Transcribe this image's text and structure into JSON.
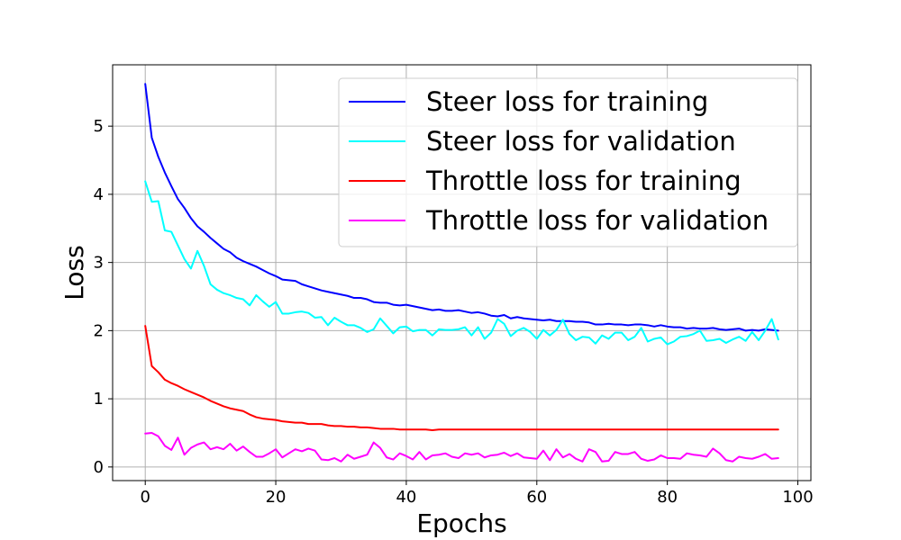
{
  "chart_data": {
    "type": "line",
    "title": "",
    "xlabel": "Epochs",
    "ylabel": "Loss",
    "xlim": [
      -5,
      102
    ],
    "ylim": [
      -0.2,
      5.9
    ],
    "xticks": [
      0,
      20,
      40,
      60,
      80,
      100
    ],
    "yticks": [
      0,
      1,
      2,
      3,
      4,
      5
    ],
    "grid": true,
    "legend_position": "upper-right",
    "x": [
      0,
      1,
      2,
      3,
      4,
      5,
      6,
      7,
      8,
      9,
      10,
      11,
      12,
      13,
      14,
      15,
      16,
      17,
      18,
      19,
      20,
      21,
      22,
      23,
      24,
      25,
      26,
      27,
      28,
      29,
      30,
      31,
      32,
      33,
      34,
      35,
      36,
      37,
      38,
      39,
      40,
      41,
      42,
      43,
      44,
      45,
      46,
      47,
      48,
      49,
      50,
      51,
      52,
      53,
      54,
      55,
      56,
      57,
      58,
      59,
      60,
      61,
      62,
      63,
      64,
      65,
      66,
      67,
      68,
      69,
      70,
      71,
      72,
      73,
      74,
      75,
      76,
      77,
      78,
      79,
      80,
      81,
      82,
      83,
      84,
      85,
      86,
      87,
      88,
      89,
      90,
      91,
      92,
      93,
      94,
      95,
      96,
      97
    ],
    "series": [
      {
        "name": "Steer loss for training",
        "color": "#0000ff",
        "values": [
          5.62,
          4.83,
          4.55,
          4.32,
          4.12,
          3.93,
          3.8,
          3.65,
          3.53,
          3.45,
          3.36,
          3.28,
          3.2,
          3.15,
          3.07,
          3.02,
          2.98,
          2.94,
          2.89,
          2.84,
          2.8,
          2.75,
          2.74,
          2.73,
          2.68,
          2.65,
          2.62,
          2.59,
          2.57,
          2.55,
          2.53,
          2.51,
          2.48,
          2.48,
          2.46,
          2.42,
          2.41,
          2.41,
          2.38,
          2.37,
          2.38,
          2.36,
          2.34,
          2.32,
          2.3,
          2.31,
          2.29,
          2.29,
          2.3,
          2.28,
          2.26,
          2.27,
          2.25,
          2.22,
          2.21,
          2.23,
          2.18,
          2.2,
          2.18,
          2.17,
          2.16,
          2.15,
          2.16,
          2.14,
          2.14,
          2.14,
          2.13,
          2.13,
          2.12,
          2.09,
          2.09,
          2.1,
          2.09,
          2.09,
          2.08,
          2.09,
          2.09,
          2.08,
          2.06,
          2.08,
          2.06,
          2.05,
          2.05,
          2.03,
          2.04,
          2.03,
          2.03,
          2.04,
          2.02,
          2.01,
          2.02,
          2.03,
          2.0,
          2.01,
          2.0,
          2.02,
          2.01,
          2.0
        ]
      },
      {
        "name": "Steer loss for validation",
        "color": "#00ffff",
        "values": [
          4.19,
          3.89,
          3.9,
          3.47,
          3.45,
          3.25,
          3.05,
          2.91,
          3.17,
          2.95,
          2.68,
          2.6,
          2.55,
          2.52,
          2.48,
          2.46,
          2.37,
          2.52,
          2.43,
          2.35,
          2.42,
          2.25,
          2.25,
          2.27,
          2.28,
          2.26,
          2.19,
          2.2,
          2.08,
          2.19,
          2.13,
          2.08,
          2.08,
          2.04,
          1.98,
          2.02,
          2.18,
          2.07,
          1.96,
          2.05,
          2.06,
          1.99,
          2.01,
          2.01,
          1.93,
          2.02,
          2.01,
          2.01,
          2.02,
          2.05,
          1.93,
          2.05,
          1.88,
          1.97,
          2.17,
          2.1,
          1.92,
          2.0,
          2.04,
          1.98,
          1.88,
          2.01,
          1.93,
          2.01,
          2.16,
          1.95,
          1.86,
          1.91,
          1.9,
          1.81,
          1.93,
          1.88,
          1.97,
          1.97,
          1.86,
          1.91,
          2.04,
          1.84,
          1.88,
          1.9,
          1.8,
          1.84,
          1.91,
          1.92,
          1.95,
          2.0,
          1.85,
          1.86,
          1.88,
          1.82,
          1.87,
          1.91,
          1.85,
          1.98,
          1.86,
          2.0,
          2.17,
          1.87
        ]
      },
      {
        "name": "Throttle loss for training",
        "color": "#ff0000",
        "values": [
          2.07,
          1.48,
          1.39,
          1.28,
          1.23,
          1.19,
          1.14,
          1.1,
          1.06,
          1.02,
          0.97,
          0.93,
          0.89,
          0.86,
          0.84,
          0.82,
          0.77,
          0.73,
          0.71,
          0.7,
          0.69,
          0.67,
          0.66,
          0.65,
          0.65,
          0.63,
          0.63,
          0.63,
          0.61,
          0.6,
          0.6,
          0.59,
          0.59,
          0.58,
          0.58,
          0.57,
          0.56,
          0.56,
          0.56,
          0.55,
          0.55,
          0.55,
          0.55,
          0.55,
          0.54,
          0.55,
          0.55,
          0.55,
          0.55,
          0.55,
          0.55,
          0.55,
          0.55,
          0.55,
          0.55,
          0.55,
          0.55,
          0.55,
          0.55,
          0.55,
          0.55,
          0.55,
          0.55,
          0.55,
          0.55,
          0.55,
          0.55,
          0.55,
          0.55,
          0.55,
          0.55,
          0.55,
          0.55,
          0.55,
          0.55,
          0.55,
          0.55,
          0.55,
          0.55,
          0.55,
          0.55,
          0.55,
          0.55,
          0.55,
          0.55,
          0.55,
          0.55,
          0.55,
          0.55,
          0.55,
          0.55,
          0.55,
          0.55,
          0.55,
          0.55,
          0.55,
          0.55,
          0.55
        ]
      },
      {
        "name": "Throttle loss for validation",
        "color": "#ff00ff",
        "values": [
          0.49,
          0.5,
          0.45,
          0.31,
          0.25,
          0.43,
          0.18,
          0.28,
          0.33,
          0.36,
          0.26,
          0.29,
          0.26,
          0.34,
          0.24,
          0.3,
          0.22,
          0.15,
          0.15,
          0.2,
          0.26,
          0.14,
          0.2,
          0.26,
          0.23,
          0.27,
          0.24,
          0.11,
          0.1,
          0.13,
          0.08,
          0.18,
          0.12,
          0.15,
          0.18,
          0.36,
          0.28,
          0.14,
          0.11,
          0.2,
          0.16,
          0.11,
          0.22,
          0.11,
          0.17,
          0.18,
          0.2,
          0.15,
          0.13,
          0.2,
          0.18,
          0.2,
          0.14,
          0.17,
          0.18,
          0.21,
          0.16,
          0.2,
          0.14,
          0.13,
          0.12,
          0.24,
          0.1,
          0.26,
          0.14,
          0.19,
          0.12,
          0.08,
          0.26,
          0.22,
          0.08,
          0.09,
          0.22,
          0.19,
          0.19,
          0.22,
          0.12,
          0.09,
          0.11,
          0.17,
          0.13,
          0.13,
          0.12,
          0.2,
          0.18,
          0.17,
          0.15,
          0.27,
          0.2,
          0.1,
          0.08,
          0.15,
          0.13,
          0.12,
          0.15,
          0.19,
          0.12,
          0.13
        ]
      }
    ]
  }
}
